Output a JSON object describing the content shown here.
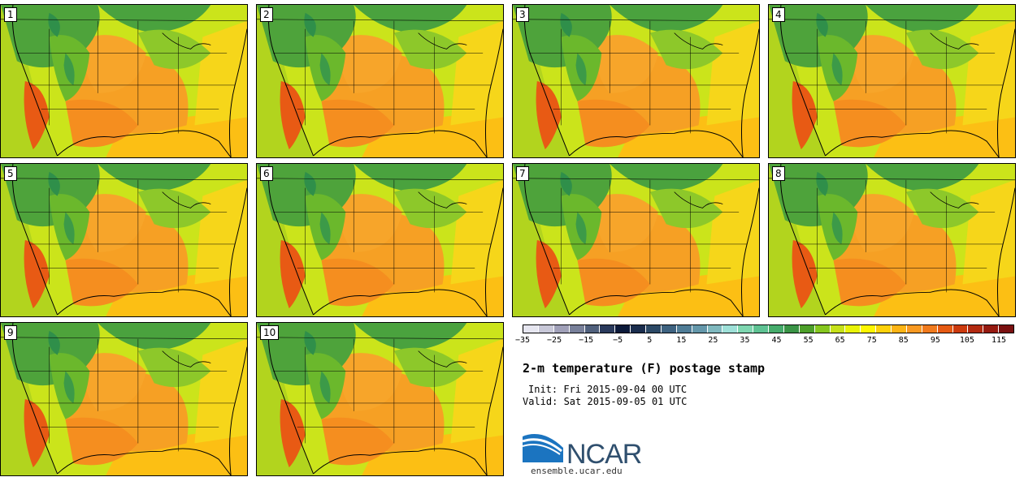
{
  "title": "2-m temperature (F) postage stamp",
  "init": "Init: Fri 2015-09-04 00 UTC",
  "valid": "Valid: Sat 2015-09-05 01 UTC",
  "logo": {
    "name": "NCAR",
    "url": "ensemble.ucar.edu"
  },
  "members": [
    "1",
    "2",
    "3",
    "4",
    "5",
    "6",
    "7",
    "8",
    "9",
    "10"
  ],
  "colorbar": {
    "ticks": [
      "−35",
      "−25",
      "−15",
      "−5",
      "5",
      "15",
      "25",
      "35",
      "45",
      "55",
      "65",
      "75",
      "85",
      "95",
      "105",
      "115"
    ],
    "colors": [
      "#e6e6f0",
      "#c8c8d8",
      "#a0a0b8",
      "#78809a",
      "#50607c",
      "#2a3a5c",
      "#0c1a3a",
      "#1a2d4d",
      "#2c4966",
      "#3e6280",
      "#4f7c96",
      "#6497aa",
      "#7fb8be",
      "#9ee0d8",
      "#7ed6b0",
      "#5ec293",
      "#46ac6c",
      "#3a9446",
      "#4d9f2a",
      "#86c71f",
      "#c6e11a",
      "#e9f307",
      "#fef600",
      "#fdd10a",
      "#fcb415",
      "#f89922",
      "#f07a1d",
      "#e55a13",
      "#cc3a0d",
      "#b22a10",
      "#951a10",
      "#7a1010"
    ]
  }
}
